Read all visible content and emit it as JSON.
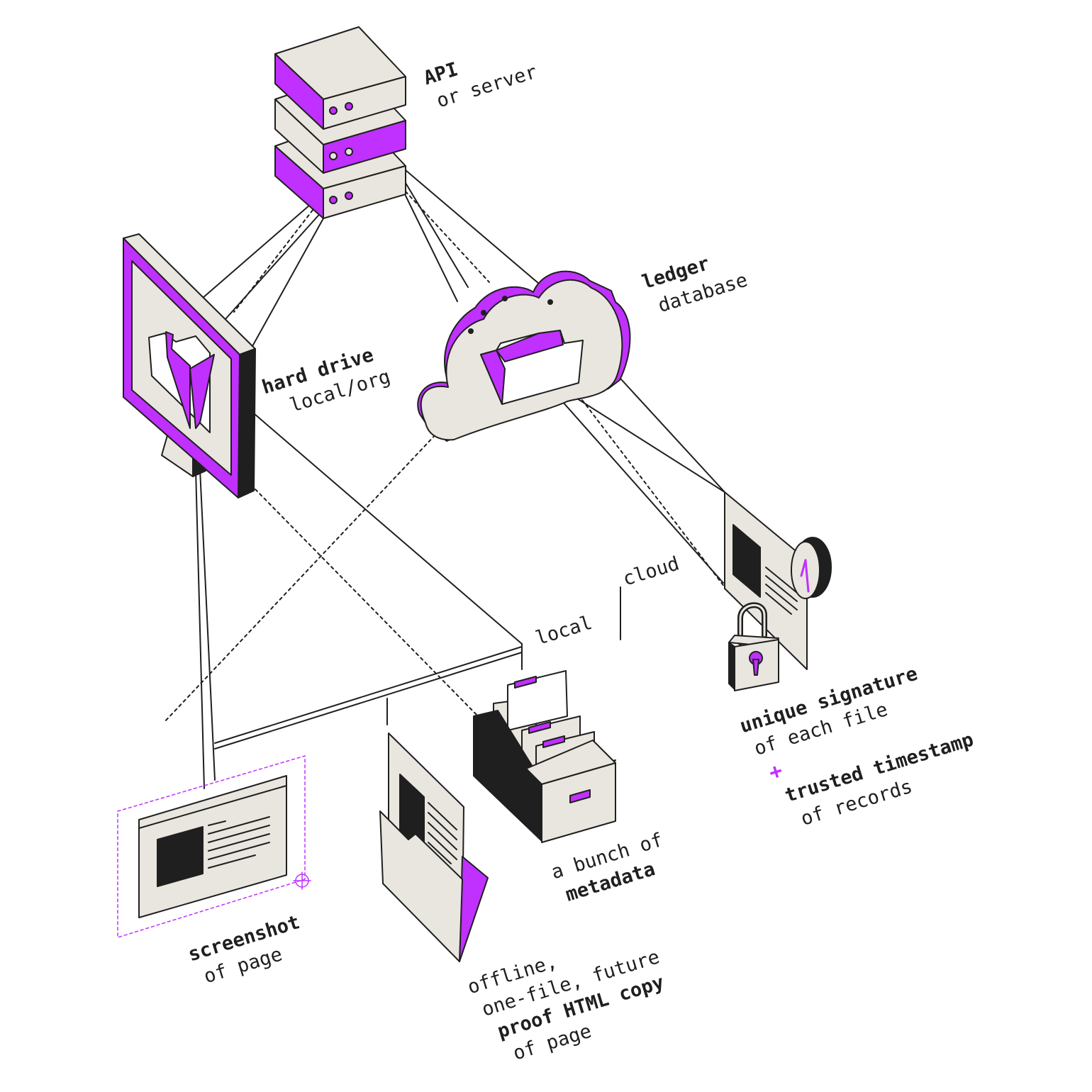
{
  "colors": {
    "accent": "#c030ff",
    "paper": "#e8e6de",
    "ink": "#1f1f1f",
    "white": "#ffffff"
  },
  "labels": {
    "api": {
      "title": "API",
      "subtitle": "or server"
    },
    "hard_drive": {
      "title": "hard drive",
      "subtitle": "local/org"
    },
    "ledger": {
      "title": "ledger",
      "subtitle": "database"
    },
    "split": {
      "left": "local",
      "right": "cloud"
    },
    "signature": {
      "title": "unique signature",
      "subtitle": "of each file",
      "plus": "+",
      "title2": "trusted timestamp",
      "subtitle2": "of records"
    },
    "metadata": {
      "line1": "a bunch of",
      "line2": "metadata"
    },
    "screenshot": {
      "title": "screenshot",
      "subtitle": "of page"
    },
    "html_copy": {
      "line1": "offline,",
      "line2": "one-file, future",
      "line3": "proof HTML copy",
      "line4": "of page"
    }
  },
  "icons": [
    "server-stack-icon",
    "monitor-icon",
    "cloud-icon",
    "folder-icon",
    "document-icon",
    "clock-icon",
    "padlock-icon",
    "file-box-icon",
    "screenshot-icon",
    "open-folder-icon"
  ]
}
